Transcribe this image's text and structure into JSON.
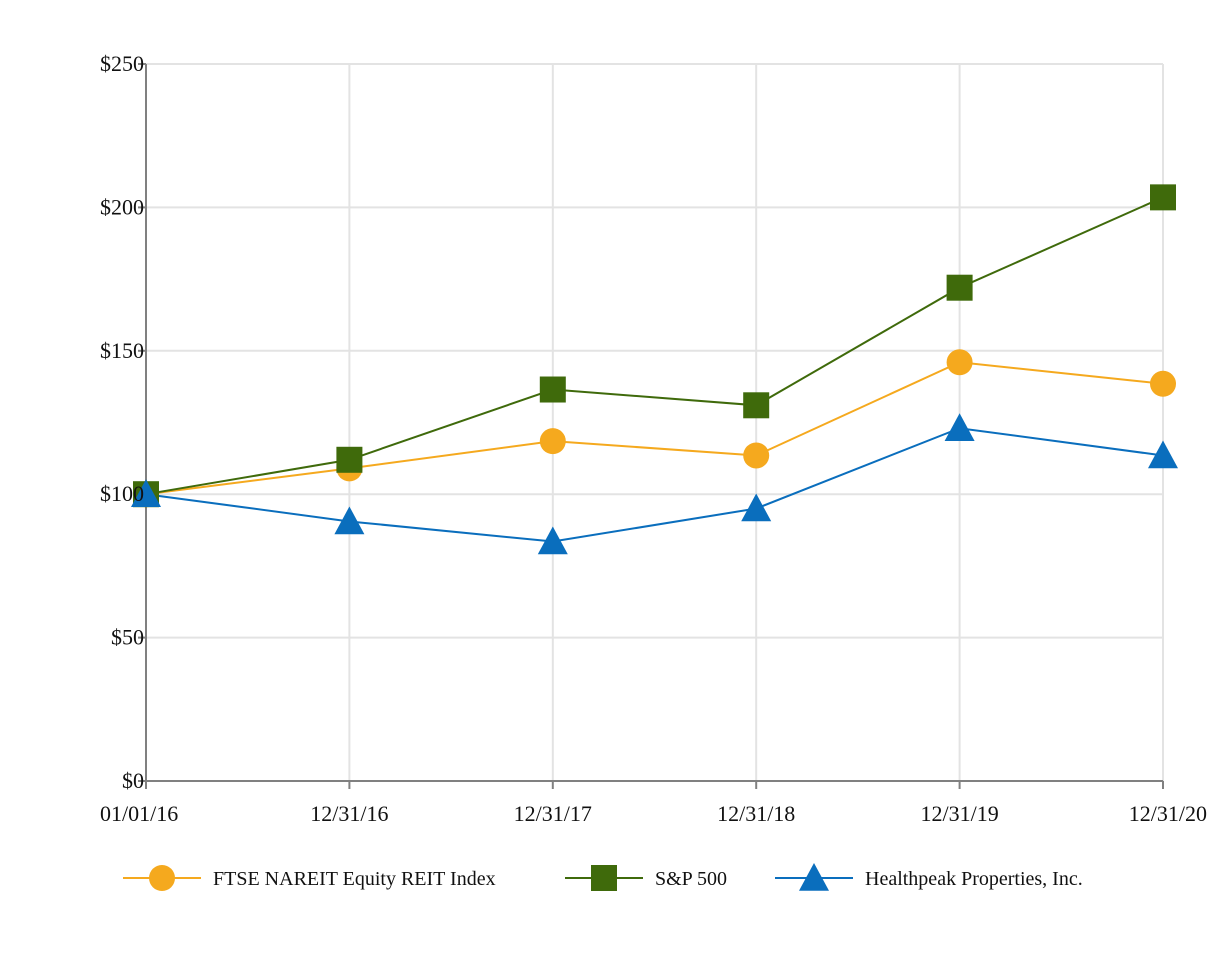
{
  "chart_data": {
    "type": "line",
    "x": [
      "01/01/16",
      "12/31/16",
      "12/31/17",
      "12/31/18",
      "12/31/19",
      "12/31/20"
    ],
    "ylim": [
      0,
      250
    ],
    "yticks": [
      0,
      50,
      100,
      150,
      200,
      250
    ],
    "ytick_labels": [
      "$0",
      "$50",
      "$100",
      "$150",
      "$200",
      "$250"
    ],
    "grid": true,
    "legend_position": "bottom",
    "series": [
      {
        "name": "FTSE NAREIT Equity REIT Index",
        "color": "#F5A91E",
        "marker": "circle",
        "values": [
          100,
          109,
          118.5,
          113.5,
          146,
          138.5
        ]
      },
      {
        "name": "S&P 500",
        "color": "#3F6A0B",
        "marker": "square",
        "values": [
          100,
          112,
          136.5,
          131,
          172,
          203.5
        ]
      },
      {
        "name": "Healthpeak Properties, Inc.",
        "color": "#0A6EBD",
        "marker": "triangle",
        "values": [
          100,
          90.5,
          83.5,
          95,
          123,
          113.5
        ]
      }
    ]
  }
}
